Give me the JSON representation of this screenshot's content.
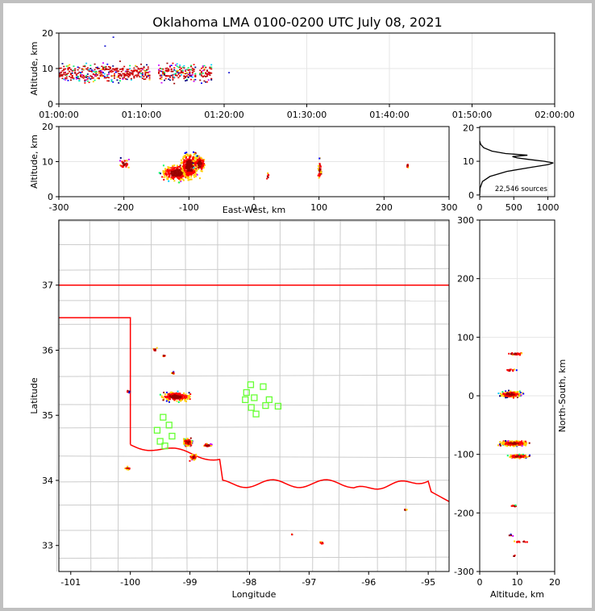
{
  "title": "Oklahoma LMA 0100-0200 UTC July 08, 2021",
  "sources_label": "22,546 sources",
  "chart_data": [
    {
      "id": "time_height",
      "type": "scatter",
      "xlabel": "",
      "ylabel": "Altitude, km",
      "x_ticks": [
        "01:00:00",
        "01:10:00",
        "01:20:00",
        "01:30:00",
        "01:40:00",
        "01:50:00",
        "02:00:00"
      ],
      "xlim_minutes": [
        0,
        60
      ],
      "ylim": [
        0,
        20
      ],
      "y_ticks": [
        0,
        10,
        20
      ],
      "activity_windows_minutes": [
        [
          0,
          11
        ],
        [
          12,
          16.5
        ],
        [
          17,
          18.5
        ]
      ],
      "points": [
        {
          "x": 5.5,
          "y": 16.5
        },
        {
          "x": 6.5,
          "y": 19
        },
        {
          "x": 20.5,
          "y": 9
        }
      ]
    },
    {
      "id": "ew_height",
      "type": "scatter",
      "xlabel": "East-West, km",
      "ylabel": "Altitude, km",
      "xlim": [
        -300,
        300
      ],
      "ylim": [
        0,
        20
      ],
      "x_ticks": [
        -300,
        -200,
        -100,
        0,
        100,
        200,
        300
      ],
      "y_ticks": [
        0,
        10,
        20
      ],
      "clusters": [
        {
          "x": -200,
          "y": 9.5,
          "wx": 10,
          "wy": 2,
          "n": 30
        },
        {
          "x": -120,
          "y": 7,
          "wx": 30,
          "wy": 3,
          "n": 260
        },
        {
          "x": -100,
          "y": 9,
          "wx": 18,
          "wy": 5,
          "n": 320
        },
        {
          "x": -85,
          "y": 9.5,
          "wx": 12,
          "wy": 3,
          "n": 110
        },
        {
          "x": 20,
          "y": 6,
          "wx": 3,
          "wy": 1.5,
          "n": 6
        },
        {
          "x": 100,
          "y": 8,
          "wx": 3,
          "wy": 4,
          "n": 40
        },
        {
          "x": 235,
          "y": 9,
          "wx": 2,
          "wy": 1,
          "n": 8
        }
      ]
    },
    {
      "id": "altitude_histogram",
      "type": "line",
      "xlabel": "",
      "ylabel": "",
      "xlim": [
        0,
        1100
      ],
      "ylim": [
        0,
        20
      ],
      "x_ticks": [
        0,
        500,
        1000
      ],
      "y_ticks": [
        0,
        10,
        20
      ],
      "profile": [
        {
          "x": 0,
          "y": 0
        },
        {
          "x": 5,
          "y": 2
        },
        {
          "x": 40,
          "y": 4
        },
        {
          "x": 150,
          "y": 5.5
        },
        {
          "x": 400,
          "y": 7
        },
        {
          "x": 750,
          "y": 8.2
        },
        {
          "x": 1000,
          "y": 9
        },
        {
          "x": 1080,
          "y": 9.5
        },
        {
          "x": 950,
          "y": 10
        },
        {
          "x": 700,
          "y": 10.6
        },
        {
          "x": 550,
          "y": 11
        },
        {
          "x": 480,
          "y": 11.4
        },
        {
          "x": 700,
          "y": 11.8
        },
        {
          "x": 380,
          "y": 12.3
        },
        {
          "x": 180,
          "y": 13
        },
        {
          "x": 60,
          "y": 14
        },
        {
          "x": 15,
          "y": 15
        },
        {
          "x": 0,
          "y": 16
        }
      ]
    },
    {
      "id": "plan_view",
      "type": "scatter",
      "xlabel": "Longitude",
      "ylabel": "Latitude",
      "xlim": [
        -101.2,
        -94.65
      ],
      "ylim": [
        32.6,
        38
      ],
      "x_ticks": [
        -101,
        -100,
        -99,
        -98,
        -97,
        -96,
        -95
      ],
      "y_ticks": [
        33,
        34,
        35,
        36,
        37
      ],
      "station_color": "#66ff33",
      "stations": [
        {
          "lon": -97.98,
          "lat": 35.47
        },
        {
          "lon": -97.77,
          "lat": 35.44
        },
        {
          "lon": -98.05,
          "lat": 35.35
        },
        {
          "lon": -98.07,
          "lat": 35.24
        },
        {
          "lon": -97.92,
          "lat": 35.27
        },
        {
          "lon": -97.67,
          "lat": 35.24
        },
        {
          "lon": -97.73,
          "lat": 35.15
        },
        {
          "lon": -97.52,
          "lat": 35.14
        },
        {
          "lon": -97.97,
          "lat": 35.12
        },
        {
          "lon": -97.89,
          "lat": 35.02
        },
        {
          "lon": -99.45,
          "lat": 34.97
        },
        {
          "lon": -99.35,
          "lat": 34.85
        },
        {
          "lon": -99.55,
          "lat": 34.77
        },
        {
          "lon": -99.3,
          "lat": 34.68
        },
        {
          "lon": -99.5,
          "lat": 34.6
        },
        {
          "lon": -99.42,
          "lat": 34.53
        }
      ],
      "clusters": [
        {
          "lon": -99.25,
          "lat": 35.3,
          "wx": 0.35,
          "wy": 0.1,
          "n": 220
        },
        {
          "lon": -99.05,
          "lat": 34.6,
          "wx": 0.1,
          "wy": 0.08,
          "n": 110
        },
        {
          "lon": -98.95,
          "lat": 34.37,
          "wx": 0.07,
          "wy": 0.06,
          "n": 60
        },
        {
          "lon": -98.72,
          "lat": 34.55,
          "wx": 0.1,
          "wy": 0.04,
          "n": 30
        },
        {
          "lon": -99.6,
          "lat": 36.02,
          "wx": 0.05,
          "wy": 0.03,
          "n": 10
        },
        {
          "lon": -99.45,
          "lat": 35.93,
          "wx": 0.04,
          "wy": 0.02,
          "n": 8
        },
        {
          "lon": -99.3,
          "lat": 35.66,
          "wx": 0.03,
          "wy": 0.03,
          "n": 8
        },
        {
          "lon": -100.05,
          "lat": 35.38,
          "wx": 0.03,
          "wy": 0.04,
          "n": 8
        },
        {
          "lon": -100.05,
          "lat": 34.2,
          "wx": 0.07,
          "wy": 0.04,
          "n": 12
        },
        {
          "lon": -96.8,
          "lat": 33.05,
          "wx": 0.04,
          "wy": 0.03,
          "n": 10
        },
        {
          "lon": -95.4,
          "lat": 33.56,
          "wx": 0.03,
          "wy": 0.02,
          "n": 5
        },
        {
          "lon": -97.3,
          "lat": 33.18,
          "wx": 0.01,
          "wy": 0.01,
          "n": 3
        }
      ],
      "border_color": "#ff0000",
      "boundary_color": "#cccccc"
    },
    {
      "id": "ns_height",
      "type": "scatter",
      "xlabel": "Altitude, km",
      "ylabel": "North-South, km",
      "xlim": [
        0,
        20
      ],
      "ylim": [
        -300,
        300
      ],
      "x_ticks": [
        0,
        10,
        20
      ],
      "y_ticks": [
        -300,
        -200,
        -100,
        0,
        100,
        200,
        300
      ],
      "clusters": [
        {
          "x": 9,
          "y": 73,
          "wx": 3,
          "wy": 3,
          "n": 30
        },
        {
          "x": 8,
          "y": 45,
          "wx": 2,
          "wy": 3,
          "n": 15
        },
        {
          "x": 8,
          "y": 4,
          "wx": 4,
          "wy": 7,
          "n": 160
        },
        {
          "x": 9,
          "y": -80,
          "wx": 5,
          "wy": 6,
          "n": 260
        },
        {
          "x": 10,
          "y": -102,
          "wx": 4,
          "wy": 4,
          "n": 120
        },
        {
          "x": 9,
          "y": -187,
          "wx": 1.5,
          "wy": 2,
          "n": 10
        },
        {
          "x": 8,
          "y": -237,
          "wx": 1,
          "wy": 2,
          "n": 4
        },
        {
          "x": 11,
          "y": -248,
          "wx": 3,
          "wy": 2,
          "n": 14
        },
        {
          "x": 9,
          "y": -272,
          "wx": 1,
          "wy": 2,
          "n": 3
        }
      ]
    }
  ]
}
